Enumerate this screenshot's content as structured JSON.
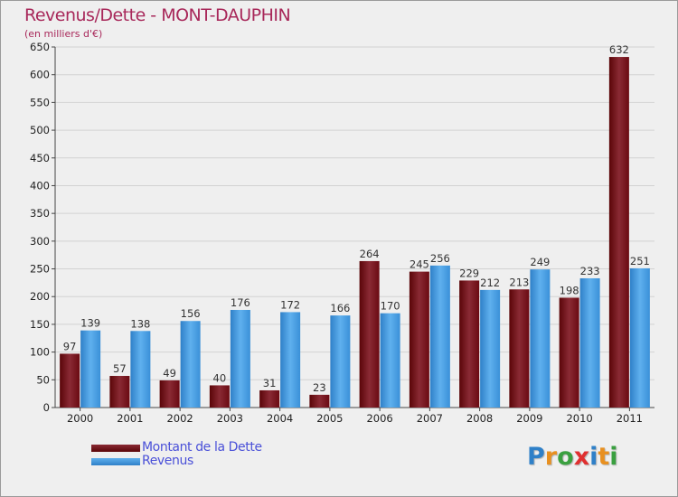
{
  "title": "Revenus/Dette - MONT-DAUPHIN",
  "subtitle": "(en milliers d'€)",
  "logo_text": "Proxiti",
  "colors": {
    "dette": "#7a0f1a",
    "revenus": "#3a90d8",
    "title": "#a8285a",
    "legend_text": "#4a50d8"
  },
  "chart_data": {
    "type": "bar",
    "title": "Revenus/Dette - MONT-DAUPHIN",
    "ylabel": "(en milliers d'€)",
    "xlabel": "",
    "ylim": [
      0,
      650
    ],
    "yticks": [
      0,
      50,
      100,
      150,
      200,
      250,
      300,
      350,
      400,
      450,
      500,
      550,
      600,
      650
    ],
    "grid": true,
    "categories": [
      "2000",
      "2001",
      "2002",
      "2003",
      "2004",
      "2005",
      "2006",
      "2007",
      "2008",
      "2009",
      "2010",
      "2011"
    ],
    "series": [
      {
        "name": "Montant de la Dette",
        "values": [
          97,
          57,
          49,
          40,
          31,
          23,
          264,
          245,
          229,
          213,
          198,
          632
        ]
      },
      {
        "name": "Revenus",
        "values": [
          139,
          138,
          156,
          176,
          172,
          166,
          170,
          256,
          212,
          249,
          233,
          251
        ]
      }
    ],
    "legend_position": "bottom-left"
  }
}
